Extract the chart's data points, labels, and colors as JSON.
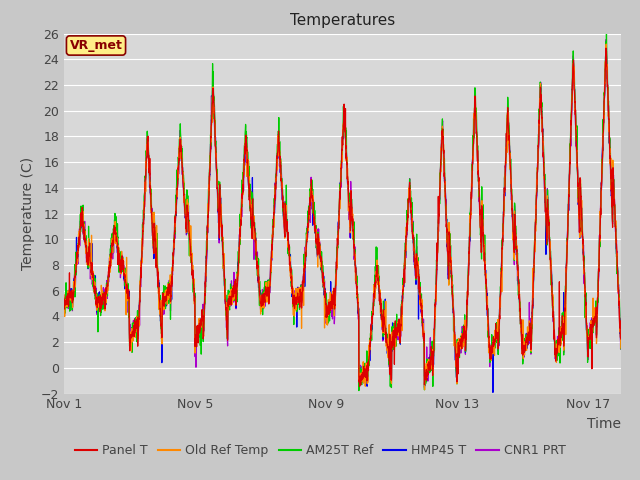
{
  "title": "Temperatures",
  "xlabel": "Time",
  "ylabel": "Temperature (C)",
  "ylim": [
    -2,
    26
  ],
  "yticks": [
    -2,
    0,
    2,
    4,
    6,
    8,
    10,
    12,
    14,
    16,
    18,
    20,
    22,
    24,
    26
  ],
  "xtick_labels": [
    "Nov 1",
    "Nov 5",
    "Nov 9",
    "Nov 13",
    "Nov 17"
  ],
  "xtick_pos": [
    0,
    4,
    8,
    12,
    16
  ],
  "xlim": [
    0,
    17
  ],
  "background_color": "#d8d8d8",
  "plot_bg_color": "#d8d8d8",
  "grid_color": "#ffffff",
  "annotation_text": "VR_met",
  "annotation_box_color": "#ffee88",
  "annotation_text_color": "#880000",
  "series_colors": {
    "Panel T": "#dd0000",
    "Old Ref Temp": "#ff8800",
    "AM25T Ref": "#00cc00",
    "HMP45 T": "#0000ee",
    "CNR1 PRT": "#aa00cc"
  },
  "legend_labels": [
    "Panel T",
    "Old Ref Temp",
    "AM25T Ref",
    "HMP45 T",
    "CNR1 PRT"
  ],
  "legend_colors": [
    "#dd0000",
    "#ff8800",
    "#00cc00",
    "#0000ee",
    "#aa00cc"
  ],
  "title_fontsize": 11,
  "axis_label_fontsize": 10,
  "tick_fontsize": 9,
  "legend_fontsize": 9
}
